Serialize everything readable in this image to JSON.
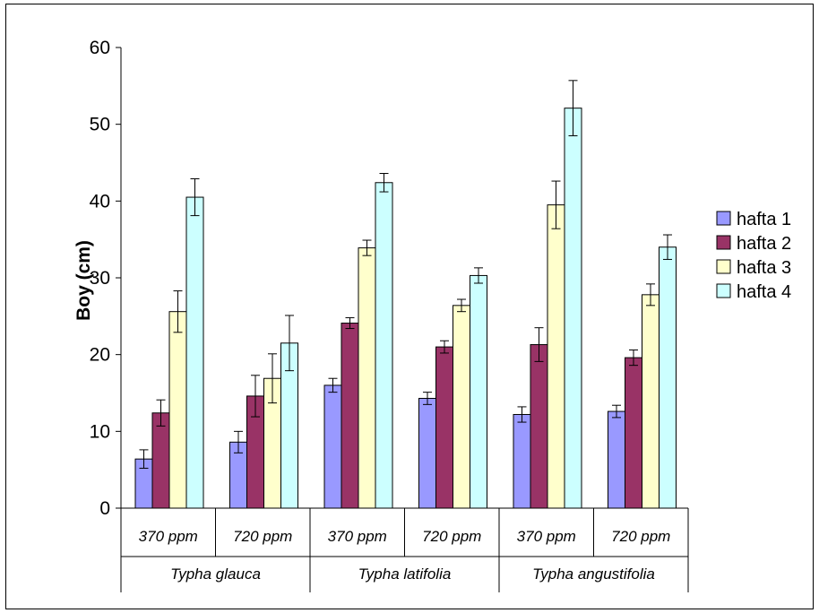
{
  "chart_data": {
    "type": "bar",
    "ylabel": "Boy (cm)",
    "ylim": [
      0,
      60
    ],
    "yticks": [
      0,
      10,
      20,
      30,
      40,
      50,
      60
    ],
    "categories": [
      "370 ppm",
      "720 ppm",
      "370 ppm",
      "720 ppm",
      "370 ppm",
      "720 ppm"
    ],
    "groups": [
      "Typha glauca",
      "Typha latifolia",
      "Typha angustifolia"
    ],
    "legend_position": "right",
    "series": [
      {
        "name": "hafta 1",
        "color": "#9999ff",
        "values": [
          6.4,
          8.6,
          16.0,
          14.3,
          12.2,
          12.6
        ],
        "errors": [
          1.2,
          1.4,
          0.9,
          0.8,
          1.0,
          0.8
        ]
      },
      {
        "name": "hafta 2",
        "color": "#993366",
        "values": [
          12.4,
          14.6,
          24.1,
          21.0,
          21.3,
          19.6
        ],
        "errors": [
          1.7,
          2.7,
          0.7,
          0.8,
          2.2,
          1.0
        ]
      },
      {
        "name": "hafta 3",
        "color": "#ffffcc",
        "values": [
          25.6,
          16.9,
          33.9,
          26.4,
          39.5,
          27.8
        ],
        "errors": [
          2.7,
          3.2,
          1.0,
          0.8,
          3.1,
          1.4
        ]
      },
      {
        "name": "hafta 4",
        "color": "#ccffff",
        "values": [
          40.5,
          21.5,
          42.4,
          30.3,
          52.1,
          34.0
        ],
        "errors": [
          2.4,
          3.6,
          1.2,
          1.0,
          3.6,
          1.6
        ]
      }
    ]
  }
}
